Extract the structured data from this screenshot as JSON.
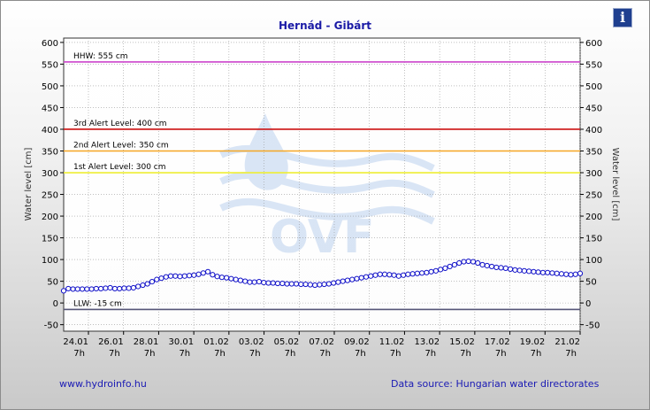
{
  "title": "Hernád - Gibárt",
  "info_icon": "info-icon",
  "footer": {
    "website": "www.hydroinfo.hu",
    "source": "Data source: Hungarian water directorates"
  },
  "watermark_text": "OVF",
  "colors": {
    "series": "#1010c8",
    "hhw": "#cc44cc",
    "alert3": "#cc1111",
    "alert2": "#f5a623",
    "alert1": "#eeee33",
    "llw": "#555577",
    "title": "#1a1aa6"
  },
  "chart_data": {
    "type": "line",
    "title": "Hernád - Gibárt",
    "ylabel": "Water level [cm]",
    "ylabel_right": "Water level [cm]",
    "ylim": [
      -65,
      610
    ],
    "yticks": [
      -50,
      0,
      50,
      100,
      150,
      200,
      250,
      300,
      350,
      400,
      450,
      500,
      550,
      600
    ],
    "grid": true,
    "xlim_days": [
      0,
      30
    ],
    "xticks": [
      {
        "date": "24.01",
        "time": "7h"
      },
      {
        "date": "26.01",
        "time": "7h"
      },
      {
        "date": "28.01",
        "time": "7h"
      },
      {
        "date": "30.01",
        "time": "7h"
      },
      {
        "date": "01.02",
        "time": "7h"
      },
      {
        "date": "03.02",
        "time": "7h"
      },
      {
        "date": "05.02",
        "time": "7h"
      },
      {
        "date": "07.02",
        "time": "7h"
      },
      {
        "date": "09.02",
        "time": "7h"
      },
      {
        "date": "11.02",
        "time": "7h"
      },
      {
        "date": "13.02",
        "time": "7h"
      },
      {
        "date": "15.02",
        "time": "7h"
      },
      {
        "date": "17.02",
        "time": "7h"
      },
      {
        "date": "19.02",
        "time": "7h"
      },
      {
        "date": "21.02",
        "time": "7h"
      }
    ],
    "reference_lines": [
      {
        "label": "HHW: 555 cm",
        "value": 555,
        "color_key": "hhw"
      },
      {
        "label": "3rd Alert Level: 400 cm",
        "value": 400,
        "color_key": "alert3"
      },
      {
        "label": "2nd Alert Level: 350 cm",
        "value": 350,
        "color_key": "alert2"
      },
      {
        "label": "1st Alert Level: 300 cm",
        "value": 300,
        "color_key": "alert1"
      },
      {
        "label": "LLW: -15 cm",
        "value": -15,
        "color_key": "llw"
      }
    ],
    "series": [
      {
        "values": [
          28,
          33,
          32,
          32,
          32,
          32,
          32,
          33,
          33,
          34,
          35,
          33,
          33,
          34,
          34,
          35,
          38,
          41,
          44,
          49,
          54,
          57,
          60,
          62,
          62,
          61,
          62,
          63,
          64,
          66,
          69,
          72,
          65,
          61,
          59,
          58,
          56,
          54,
          52,
          50,
          48,
          48,
          49,
          47,
          46,
          46,
          45,
          45,
          44,
          44,
          44,
          43,
          43,
          42,
          41,
          42,
          43,
          44,
          46,
          48,
          50,
          52,
          54,
          56,
          58,
          60,
          62,
          64,
          66,
          66,
          65,
          64,
          62,
          64,
          66,
          67,
          68,
          69,
          70,
          72,
          74,
          77,
          80,
          84,
          88,
          92,
          95,
          96,
          95,
          92,
          88,
          86,
          84,
          82,
          81,
          80,
          78,
          76,
          75,
          74,
          73,
          72,
          71,
          70,
          70,
          69,
          68,
          67,
          66,
          65,
          66,
          68
        ]
      }
    ]
  }
}
